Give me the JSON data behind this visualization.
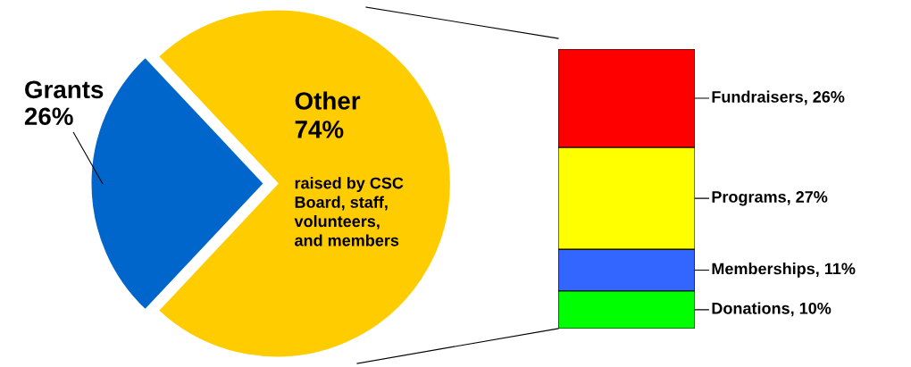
{
  "chart_data": [
    {
      "type": "pie",
      "categories": [
        "Grants",
        "Other"
      ],
      "values": [
        26,
        74
      ],
      "colors": [
        "#0066cc",
        "#ffcc00"
      ],
      "value_labels": [
        "26%",
        "74%"
      ],
      "annotations": [
        "raised by CSC\nBoard, staff,\nvolunteers,\nand members"
      ]
    },
    {
      "type": "bar",
      "stacked": true,
      "categories": [
        null
      ],
      "series": [
        {
          "color": "#00ff00",
          "values": [
            10
          ],
          "value_labels": [
            "Donations, 10%"
          ]
        },
        {
          "color": "#3366ff",
          "values": [
            11
          ],
          "value_labels": [
            "Memberships, 11%"
          ]
        },
        {
          "color": "#ffff00",
          "values": [
            27
          ],
          "value_labels": [
            "Programs, 27%"
          ]
        },
        {
          "color": "#ff0000",
          "values": [
            26
          ],
          "value_labels": [
            "Fundraisers, 26%"
          ]
        }
      ]
    }
  ]
}
